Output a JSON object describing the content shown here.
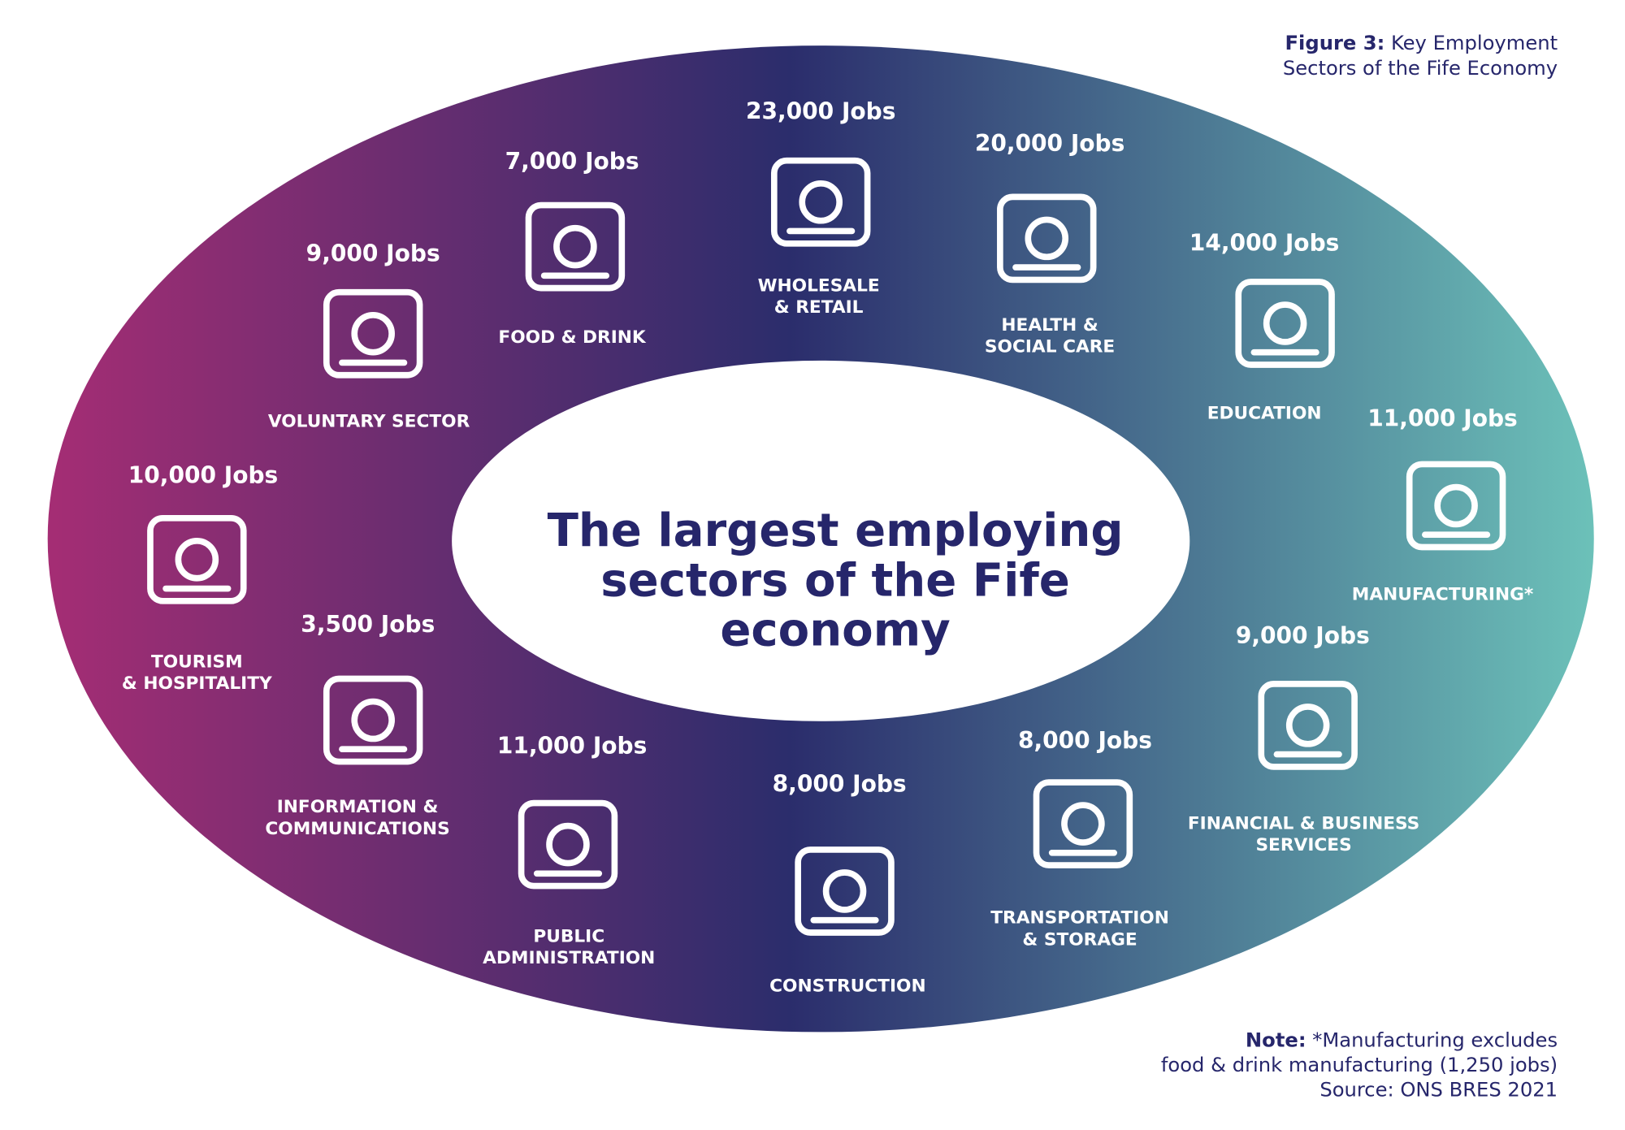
{
  "caption": {
    "label": "Figure 3:",
    "lines": [
      "Key Employment",
      "Sectors of the Fife Economy"
    ]
  },
  "title": [
    "The largest employing",
    "sectors of the Fife",
    "economy"
  ],
  "sectors": [
    {
      "jobs": "9,000 Jobs",
      "name": [
        "VOLUNTARY SECTOR"
      ]
    },
    {
      "jobs": "7,000 Jobs",
      "name": [
        "FOOD & DRINK"
      ]
    },
    {
      "jobs": "23,000 Jobs",
      "name": [
        "WHOLESALE",
        "& RETAIL"
      ]
    },
    {
      "jobs": "20,000 Jobs",
      "name": [
        "HEALTH &",
        "SOCIAL CARE"
      ]
    },
    {
      "jobs": "14,000 Jobs",
      "name": [
        "EDUCATION"
      ]
    },
    {
      "jobs": "11,000 Jobs",
      "name": [
        "MANUFACTURING*"
      ]
    },
    {
      "jobs": "9,000 Jobs",
      "name": [
        "FINANCIAL & BUSINESS",
        "SERVICES"
      ]
    },
    {
      "jobs": "8,000 Jobs",
      "name": [
        "TRANSPORTATION",
        "& STORAGE"
      ]
    },
    {
      "jobs": "8,000 Jobs",
      "name": [
        "CONSTRUCTION"
      ]
    },
    {
      "jobs": "11,000 Jobs",
      "name": [
        "PUBLIC",
        "ADMINISTRATION"
      ]
    },
    {
      "jobs": "3,500 Jobs",
      "name": [
        "INFORMATION &",
        "COMMUNICATIONS"
      ]
    },
    {
      "jobs": "10,000 Jobs",
      "name": [
        "TOURISM",
        "& HOSPITALITY"
      ]
    }
  ],
  "note": {
    "label": "Note:",
    "lines": [
      "*Manufacturing excludes",
      "food & drink manufacturing (1,250 jobs)",
      "Source: ONS BRES 2021"
    ]
  }
}
